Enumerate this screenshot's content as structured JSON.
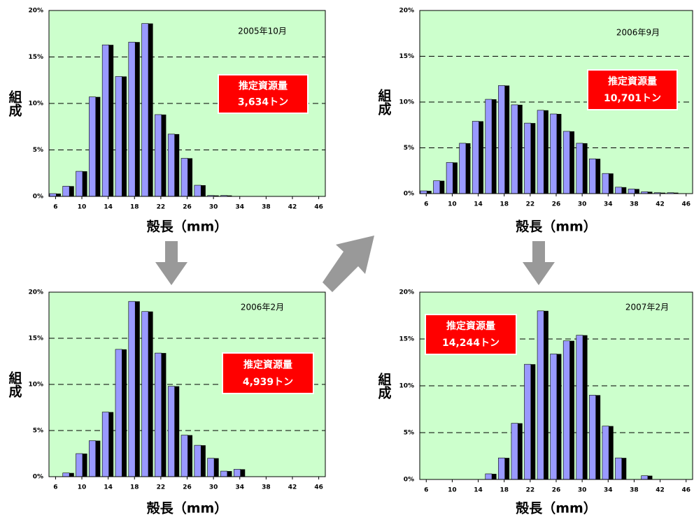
{
  "chart_data": [
    {
      "type": "bar",
      "title": "2005年10月",
      "estimate_label": "推定資源量",
      "estimate_value": "3,634トン",
      "x_label": "殻長（mm）",
      "y_label": "組成",
      "color": "#9999ff",
      "background": "#ccffcc",
      "grid": true,
      "categories": [
        6,
        null,
        10,
        null,
        14,
        null,
        18,
        null,
        22,
        null,
        26,
        null,
        30,
        null,
        34,
        null,
        38,
        null,
        42,
        null,
        46
      ],
      "values": [
        0.3,
        1.1,
        2.7,
        10.7,
        16.3,
        12.9,
        16.6,
        18.6,
        8.8,
        6.7,
        4.1,
        1.2,
        0.1,
        0.1,
        0,
        0,
        0,
        0,
        0,
        0,
        0
      ],
      "ylim": [
        0,
        20
      ],
      "yticks": [
        {
          "value": 0,
          "label": "0%"
        },
        {
          "value": 5,
          "label": "5%"
        },
        {
          "value": 10,
          "label": "10%"
        },
        {
          "value": 15,
          "label": "15%"
        },
        {
          "value": 20,
          "label": "20%"
        }
      ]
    },
    {
      "type": "bar",
      "title": "2006年2月",
      "estimate_label": "推定資源量",
      "estimate_value": "4,939トン",
      "x_label": "殻長（mm）",
      "y_label": "組成",
      "color": "#9999ff",
      "background": "#ccffcc",
      "grid": true,
      "categories": [
        6,
        null,
        10,
        null,
        14,
        null,
        18,
        null,
        22,
        null,
        26,
        null,
        30,
        null,
        34,
        null,
        38,
        null,
        42,
        null,
        46
      ],
      "values": [
        0,
        0.4,
        2.5,
        3.9,
        7.0,
        13.8,
        19.0,
        17.9,
        13.4,
        9.8,
        4.5,
        3.4,
        2.0,
        0.6,
        0.8,
        0,
        0,
        0,
        0,
        0,
        0
      ],
      "ylim": [
        0,
        20
      ],
      "yticks": [
        {
          "value": 0,
          "label": "0%"
        },
        {
          "value": 5,
          "label": "5%"
        },
        {
          "value": 10,
          "label": "10%"
        },
        {
          "value": 15,
          "label": "15%"
        },
        {
          "value": 20,
          "label": "20%"
        }
      ]
    },
    {
      "type": "bar",
      "title": "2006年9月",
      "estimate_label": "推定資源量",
      "estimate_value": "10,701トン",
      "x_label": "殻長（mm）",
      "y_label": "組成",
      "color": "#9999ff",
      "background": "#ccffcc",
      "grid": true,
      "categories": [
        6,
        null,
        10,
        null,
        14,
        null,
        18,
        null,
        22,
        null,
        26,
        null,
        30,
        null,
        34,
        null,
        38,
        null,
        42,
        null,
        46
      ],
      "values": [
        0.3,
        1.4,
        3.4,
        5.5,
        7.9,
        10.3,
        11.8,
        9.7,
        7.7,
        9.1,
        8.7,
        6.8,
        5.5,
        3.8,
        2.2,
        0.7,
        0.5,
        0.2,
        0.1,
        0.1,
        0
      ],
      "ylim": [
        0,
        20
      ],
      "yticks": [
        {
          "value": 0,
          "label": "0%"
        },
        {
          "value": 5,
          "label": "5%"
        },
        {
          "value": 10,
          "label": "10%"
        },
        {
          "value": 15,
          "label": "15%"
        },
        {
          "value": 20,
          "label": "20%"
        }
      ]
    },
    {
      "type": "bar",
      "title": "2007年2月",
      "estimate_label": "推定資源量",
      "estimate_value": "14,244トン",
      "x_label": "殻長（mm）",
      "y_label": "組成",
      "color": "#9999ff",
      "background": "#ccffcc",
      "grid": true,
      "categories": [
        6,
        null,
        10,
        null,
        14,
        null,
        18,
        null,
        22,
        null,
        26,
        null,
        30,
        null,
        34,
        null,
        38,
        null,
        42,
        null,
        46
      ],
      "values": [
        0,
        0,
        0,
        0,
        0,
        0.6,
        2.3,
        6.0,
        12.3,
        18.0,
        13.4,
        14.8,
        15.4,
        9.0,
        5.7,
        2.3,
        0,
        0.4,
        0,
        0,
        0
      ],
      "ylim": [
        0,
        20
      ],
      "yticks": [
        {
          "value": 0,
          "label": "0%"
        },
        {
          "value": 5,
          "label": "5%"
        },
        {
          "value": 10,
          "label": "10%"
        },
        {
          "value": 15,
          "label": "15%"
        },
        {
          "value": 20,
          "label": "20%"
        }
      ]
    }
  ]
}
